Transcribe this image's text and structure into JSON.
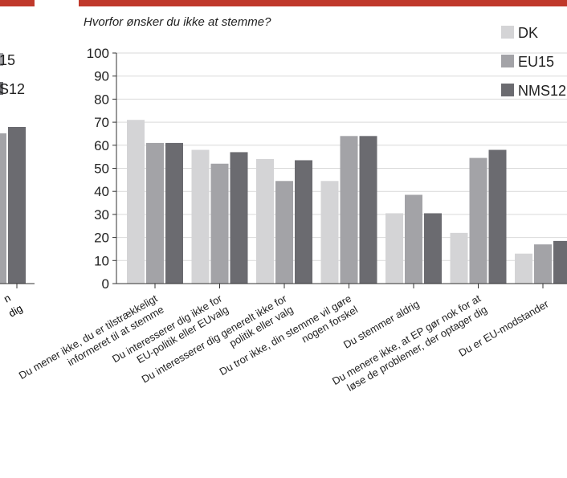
{
  "left_panel": {
    "legend_partial": [
      "15",
      "S12"
    ],
    "tick_fragments": [
      "n",
      "dig"
    ],
    "bar_color_eu15": "#a3a3a7",
    "bar_color_nms12": "#6b6b70"
  },
  "colors": {
    "accent_bar": "#c0392b",
    "dk": "#d4d4d6",
    "eu15": "#a3a3a7",
    "nms12": "#6b6b70",
    "grid": "#d9d9d9",
    "axis": "#333333"
  },
  "chart_data": {
    "type": "bar",
    "title": "Hvorfor ønsker du ikke at stemme?",
    "ylim": [
      0,
      100
    ],
    "yticks": [
      0,
      10,
      20,
      30,
      40,
      50,
      60,
      70,
      80,
      90,
      100
    ],
    "grid": true,
    "legend_position": "top-right",
    "categories": [
      [
        "Du mener ikke, du er tilstrækkeligt",
        "informeret til at stemme"
      ],
      [
        "Du interesserer dig ikke for",
        "EU-politik eller EUvalg"
      ],
      [
        "Du interesserer dig generelt ikke for",
        "politik eller valg"
      ],
      [
        "Du tror ikke, din stemme vil gøre",
        "nogen forskel"
      ],
      [
        "Du stemmer aldrig"
      ],
      [
        "Du menere ikke, at EP gør nok for at",
        "løse de problemer, der optager dig"
      ],
      [
        "Du er EU-modstander"
      ]
    ],
    "series": [
      {
        "name": "DK",
        "color": "#d4d4d6",
        "values": [
          71,
          58,
          54,
          44.5,
          30.5,
          22,
          13
        ]
      },
      {
        "name": "EU15",
        "color": "#a3a3a7",
        "values": [
          61,
          52,
          44.5,
          64,
          38.5,
          54.5,
          17
        ]
      },
      {
        "name": "NMS12",
        "color": "#6b6b70",
        "values": [
          61,
          57,
          53.5,
          64,
          30.5,
          58,
          18.5
        ]
      }
    ]
  }
}
